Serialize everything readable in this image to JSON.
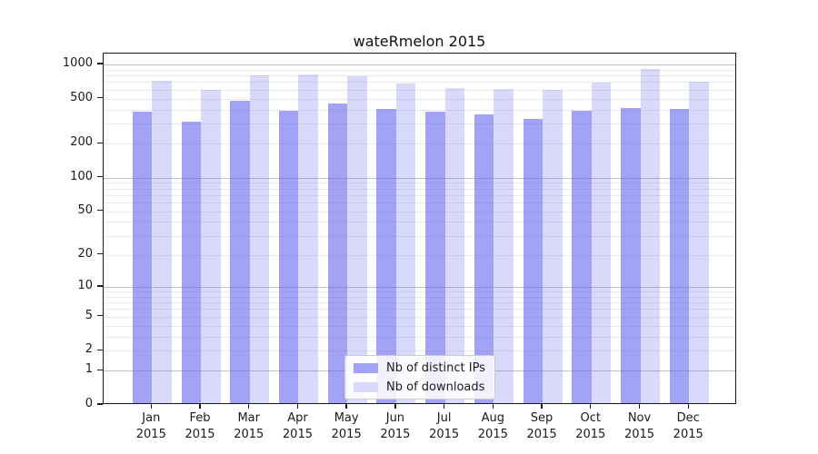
{
  "title": "wateRmelon 2015",
  "legend": {
    "items": [
      {
        "label": "Nb of distinct IPs",
        "swatch_color": "#a3a3f5"
      },
      {
        "label": "Nb of downloads",
        "swatch_color": "#d9d9fb"
      }
    ]
  },
  "chart_data": {
    "type": "bar",
    "title": "wateRmelon 2015",
    "categories": [
      "Jan 2015",
      "Feb 2015",
      "Mar 2015",
      "Apr 2015",
      "May 2015",
      "Jun 2015",
      "Jul 2015",
      "Aug 2015",
      "Sep 2015",
      "Oct 2015",
      "Nov 2015",
      "Dec 2015"
    ],
    "series": [
      {
        "name": "Nb of distinct IPs",
        "color": "rgba(102,102,238,0.60)",
        "values": [
          370,
          301,
          463,
          379,
          439,
          389,
          370,
          352,
          321,
          375,
          398,
          389
        ]
      },
      {
        "name": "Nb of downloads",
        "color": "rgba(102,102,238,0.25)",
        "values": [
          691,
          575,
          773,
          783,
          755,
          651,
          594,
          583,
          575,
          667,
          874,
          683
        ]
      }
    ],
    "yscale": "log10(value+1)",
    "yticks": [
      1000,
      500,
      200,
      100,
      50,
      20,
      10,
      5,
      2,
      1,
      0
    ],
    "ylim": [
      0,
      1250
    ],
    "grid": "both",
    "legend_position": "lower center"
  }
}
